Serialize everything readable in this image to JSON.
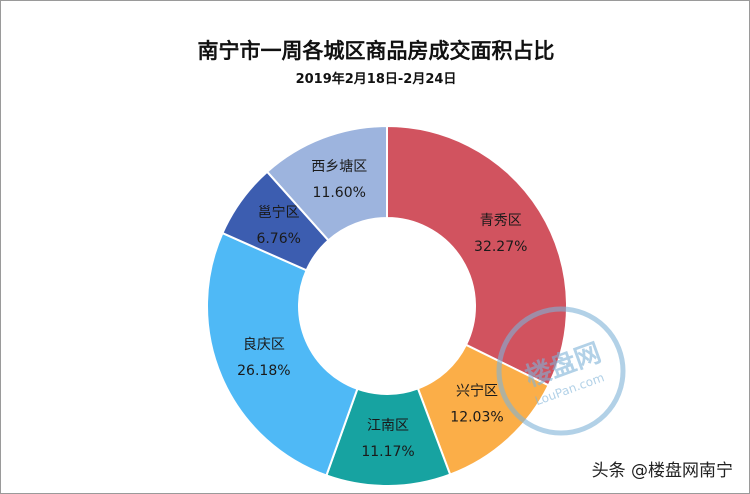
{
  "chart_data": {
    "type": "pie",
    "donut": true,
    "title": "南宁市一周各城区商品房成交面积占比",
    "subtitle": "2019年2月18日-2月24日",
    "start": "top",
    "direction": "clockwise",
    "slices": [
      {
        "label": "青秀区",
        "value": 32.27,
        "display": "32.27%",
        "color": "#D1535F"
      },
      {
        "label": "兴宁区",
        "value": 12.03,
        "display": "12.03%",
        "color": "#FBAE48"
      },
      {
        "label": "江南区",
        "value": 11.17,
        "display": "11.17%",
        "color": "#17A3A1"
      },
      {
        "label": "良庆区",
        "value": 26.18,
        "display": "26.18%",
        "color": "#4FB9F6"
      },
      {
        "label": "邕宁区",
        "value": 6.76,
        "display": "6.76%",
        "color": "#3C5DB0"
      },
      {
        "label": "西乡塘区",
        "value": 11.6,
        "display": "11.60%",
        "color": "#9DB4DE"
      }
    ],
    "legend": "none"
  },
  "logo": {
    "text": "楼盘网",
    "subtext": "LouPan.com"
  },
  "watermark": "头条 @楼盘网南宁"
}
